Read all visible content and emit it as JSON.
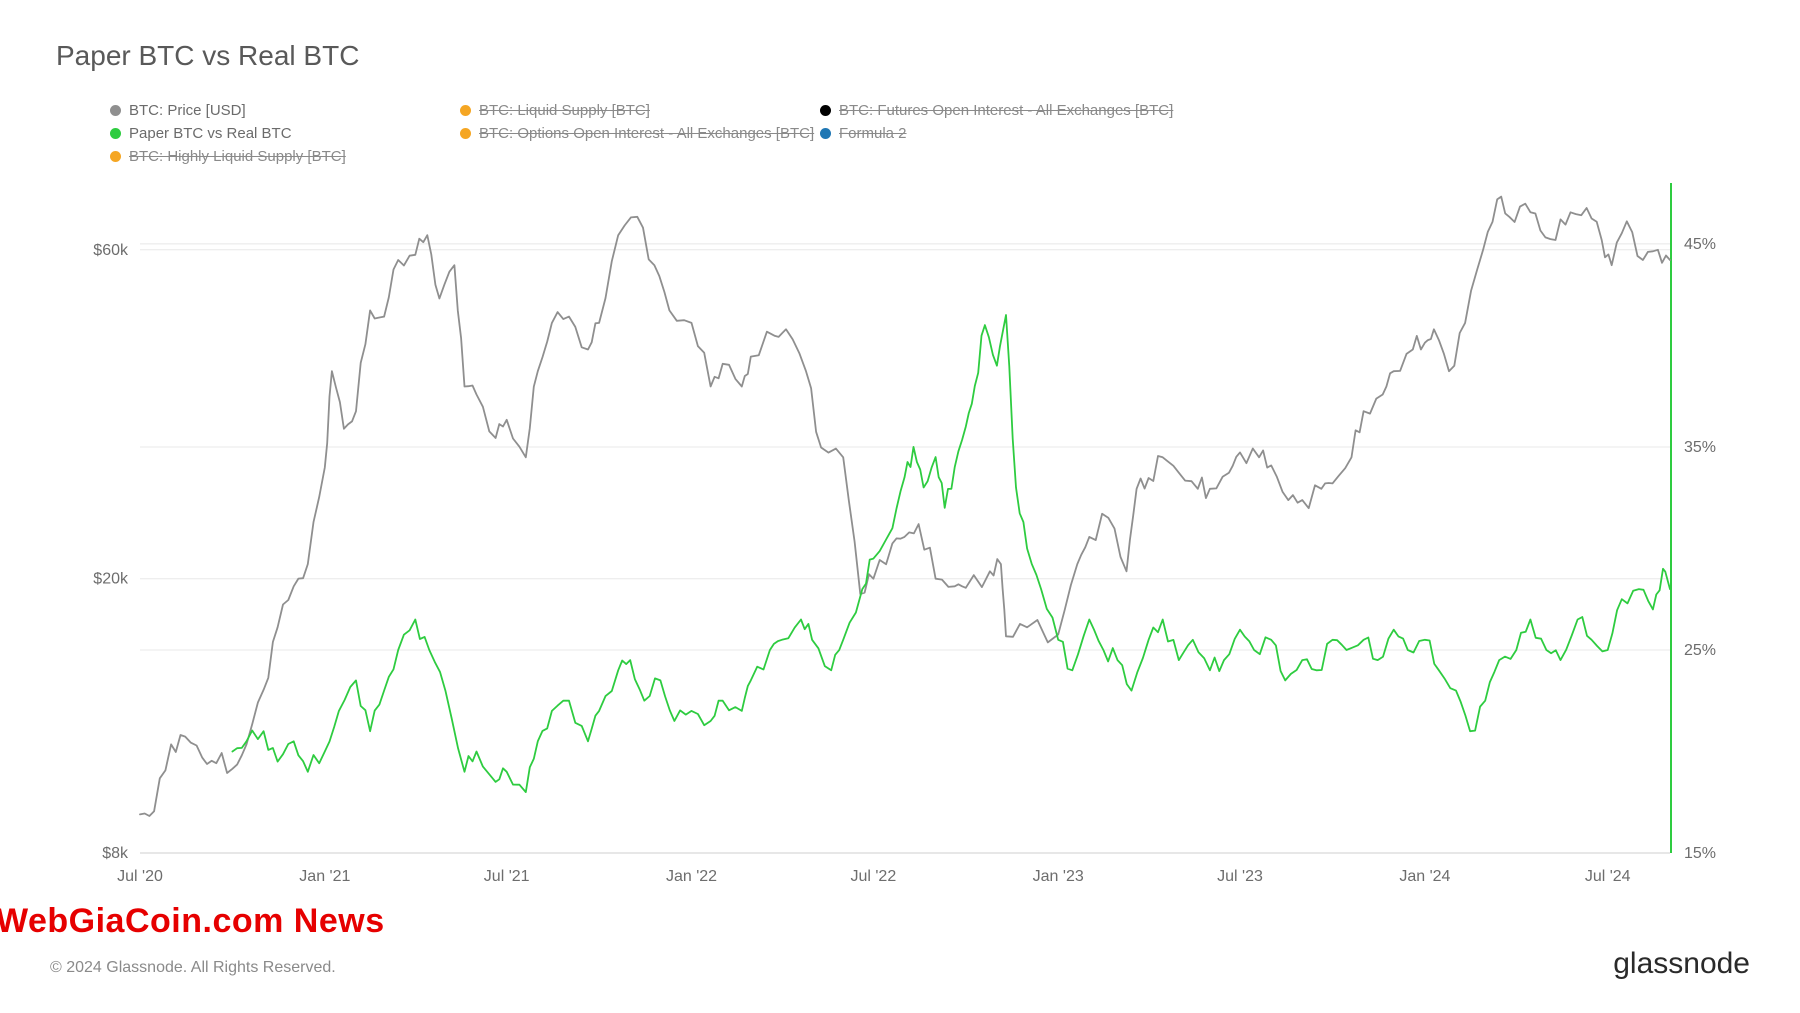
{
  "title": "Paper BTC vs Real BTC",
  "copyright": "© 2024 Glassnode. All Rights Reserved.",
  "brand": "glassnode",
  "watermark": "WebGiaCoin.com News",
  "legend": [
    {
      "label": "BTC: Price [USD]",
      "color": "#8f8f8f",
      "strike": false
    },
    {
      "label": "BTC: Liquid Supply [BTC]",
      "color": "#f5a623",
      "strike": true
    },
    {
      "label": "BTC: Futures Open Interest - All Exchanges [BTC]",
      "color": "#000000",
      "strike": true
    },
    {
      "label": "Paper BTC vs Real BTC",
      "color": "#2ecc40",
      "strike": false
    },
    {
      "label": "BTC: Options Open Interest - All Exchanges [BTC]",
      "color": "#f5a623",
      "strike": true
    },
    {
      "label": "Formula 2",
      "color": "#1f77b4",
      "strike": true
    },
    {
      "label": "BTC: Highly Liquid Supply [BTC]",
      "color": "#f5a623",
      "strike": true
    }
  ],
  "chart": {
    "background_color": "#ffffff",
    "grid_color": "#e8e8e8",
    "border_color": "#cfcfcf",
    "x": {
      "domain_dates": [
        "2020-07-01",
        "2024-09-01"
      ],
      "ticks": [
        {
          "t": "2020-07-01",
          "label": "Jul '20"
        },
        {
          "t": "2021-01-01",
          "label": "Jan '21"
        },
        {
          "t": "2021-07-01",
          "label": "Jul '21"
        },
        {
          "t": "2022-01-01",
          "label": "Jan '22"
        },
        {
          "t": "2022-07-01",
          "label": "Jul '22"
        },
        {
          "t": "2023-01-01",
          "label": "Jan '23"
        },
        {
          "t": "2023-07-01",
          "label": "Jul '23"
        },
        {
          "t": "2024-01-01",
          "label": "Jan '24"
        },
        {
          "t": "2024-07-01",
          "label": "Jul '24"
        }
      ]
    },
    "y_left": {
      "scale": "log",
      "domain": [
        8000,
        75000
      ],
      "ticks": [
        {
          "v": 8000,
          "label": "$8k"
        },
        {
          "v": 20000,
          "label": "$20k"
        },
        {
          "v": 60000,
          "label": "$60k"
        }
      ],
      "label_fontsize": 16
    },
    "y_right": {
      "scale": "linear",
      "domain": [
        15,
        48
      ],
      "ticks": [
        {
          "v": 15,
          "label": "15%"
        },
        {
          "v": 25,
          "label": "25%"
        },
        {
          "v": 35,
          "label": "35%"
        },
        {
          "v": 45,
          "label": "45%"
        }
      ],
      "label_fontsize": 16,
      "axis_highlight_color": "#2ecc40"
    },
    "series": [
      {
        "name": "price",
        "axis": "left",
        "color": "#8f8f8f",
        "line_width": 1.8,
        "points": [
          [
            "2020-07-01",
            9100
          ],
          [
            "2020-07-15",
            9200
          ],
          [
            "2020-08-01",
            11500
          ],
          [
            "2020-08-15",
            11800
          ],
          [
            "2020-09-01",
            11000
          ],
          [
            "2020-09-15",
            10800
          ],
          [
            "2020-10-01",
            10600
          ],
          [
            "2020-10-15",
            11500
          ],
          [
            "2020-11-01",
            13800
          ],
          [
            "2020-11-15",
            17000
          ],
          [
            "2020-12-01",
            19500
          ],
          [
            "2020-12-15",
            21000
          ],
          [
            "2021-01-01",
            29000
          ],
          [
            "2021-01-08",
            40000
          ],
          [
            "2021-01-20",
            33000
          ],
          [
            "2021-02-01",
            35000
          ],
          [
            "2021-02-15",
            49000
          ],
          [
            "2021-03-01",
            48000
          ],
          [
            "2021-03-15",
            58000
          ],
          [
            "2021-04-01",
            59000
          ],
          [
            "2021-04-13",
            63000
          ],
          [
            "2021-04-25",
            51000
          ],
          [
            "2021-05-10",
            57000
          ],
          [
            "2021-05-20",
            38000
          ],
          [
            "2021-06-01",
            37000
          ],
          [
            "2021-06-20",
            32000
          ],
          [
            "2021-07-01",
            34000
          ],
          [
            "2021-07-20",
            30000
          ],
          [
            "2021-08-01",
            40000
          ],
          [
            "2021-08-15",
            47000
          ],
          [
            "2021-09-01",
            48000
          ],
          [
            "2021-09-20",
            43000
          ],
          [
            "2021-10-01",
            47000
          ],
          [
            "2021-10-20",
            63000
          ],
          [
            "2021-11-08",
            67000
          ],
          [
            "2021-11-25",
            57000
          ],
          [
            "2021-12-10",
            49000
          ],
          [
            "2022-01-01",
            47000
          ],
          [
            "2022-01-20",
            38000
          ],
          [
            "2022-02-01",
            41000
          ],
          [
            "2022-02-20",
            38000
          ],
          [
            "2022-03-01",
            42000
          ],
          [
            "2022-03-25",
            45000
          ],
          [
            "2022-04-05",
            46000
          ],
          [
            "2022-04-25",
            40000
          ],
          [
            "2022-05-10",
            31000
          ],
          [
            "2022-06-01",
            30000
          ],
          [
            "2022-06-18",
            19000
          ],
          [
            "2022-07-01",
            20000
          ],
          [
            "2022-07-20",
            22500
          ],
          [
            "2022-08-01",
            23000
          ],
          [
            "2022-08-15",
            24000
          ],
          [
            "2022-09-01",
            20000
          ],
          [
            "2022-09-20",
            19500
          ],
          [
            "2022-10-01",
            19400
          ],
          [
            "2022-10-25",
            20500
          ],
          [
            "2022-11-05",
            21000
          ],
          [
            "2022-11-10",
            16500
          ],
          [
            "2022-12-01",
            17000
          ],
          [
            "2023-01-01",
            16600
          ],
          [
            "2023-01-20",
            21000
          ],
          [
            "2023-02-01",
            23000
          ],
          [
            "2023-02-20",
            24500
          ],
          [
            "2023-03-10",
            20500
          ],
          [
            "2023-03-20",
            27000
          ],
          [
            "2023-04-01",
            28000
          ],
          [
            "2023-04-15",
            30000
          ],
          [
            "2023-05-01",
            28500
          ],
          [
            "2023-05-20",
            27000
          ],
          [
            "2023-06-01",
            27000
          ],
          [
            "2023-06-20",
            28500
          ],
          [
            "2023-07-01",
            30500
          ],
          [
            "2023-07-20",
            30000
          ],
          [
            "2023-08-01",
            29200
          ],
          [
            "2023-08-18",
            26000
          ],
          [
            "2023-09-01",
            26000
          ],
          [
            "2023-09-20",
            27000
          ],
          [
            "2023-10-01",
            27500
          ],
          [
            "2023-10-20",
            30000
          ],
          [
            "2023-11-01",
            35000
          ],
          [
            "2023-11-20",
            37000
          ],
          [
            "2023-12-01",
            40000
          ],
          [
            "2023-12-20",
            43000
          ],
          [
            "2024-01-01",
            44000
          ],
          [
            "2024-01-10",
            46000
          ],
          [
            "2024-01-25",
            40000
          ],
          [
            "2024-02-10",
            47000
          ],
          [
            "2024-02-28",
            60000
          ],
          [
            "2024-03-13",
            71000
          ],
          [
            "2024-03-25",
            67000
          ],
          [
            "2024-04-10",
            70000
          ],
          [
            "2024-04-25",
            64000
          ],
          [
            "2024-05-10",
            62000
          ],
          [
            "2024-05-25",
            68000
          ],
          [
            "2024-06-10",
            69000
          ],
          [
            "2024-06-25",
            62000
          ],
          [
            "2024-07-05",
            57000
          ],
          [
            "2024-07-20",
            66000
          ],
          [
            "2024-08-05",
            58000
          ],
          [
            "2024-08-20",
            60000
          ],
          [
            "2024-09-01",
            58000
          ]
        ]
      },
      {
        "name": "ratio",
        "axis": "right",
        "color": "#2ecc40",
        "line_width": 1.8,
        "points": [
          [
            "2020-10-01",
            20.0
          ],
          [
            "2020-10-15",
            20.5
          ],
          [
            "2020-11-01",
            21.0
          ],
          [
            "2020-11-15",
            19.5
          ],
          [
            "2020-12-01",
            20.5
          ],
          [
            "2020-12-15",
            19.0
          ],
          [
            "2021-01-01",
            20.0
          ],
          [
            "2021-01-15",
            22.0
          ],
          [
            "2021-02-01",
            23.5
          ],
          [
            "2021-02-15",
            21.0
          ],
          [
            "2021-03-01",
            23.0
          ],
          [
            "2021-03-15",
            25.0
          ],
          [
            "2021-04-01",
            26.5
          ],
          [
            "2021-04-15",
            25.0
          ],
          [
            "2021-05-01",
            23.0
          ],
          [
            "2021-05-20",
            19.0
          ],
          [
            "2021-06-01",
            20.0
          ],
          [
            "2021-06-20",
            18.5
          ],
          [
            "2021-07-01",
            19.0
          ],
          [
            "2021-07-20",
            18.0
          ],
          [
            "2021-08-01",
            20.5
          ],
          [
            "2021-08-15",
            22.0
          ],
          [
            "2021-09-01",
            22.5
          ],
          [
            "2021-09-20",
            20.5
          ],
          [
            "2021-10-01",
            22.0
          ],
          [
            "2021-10-20",
            24.0
          ],
          [
            "2021-11-01",
            24.5
          ],
          [
            "2021-11-15",
            22.5
          ],
          [
            "2021-12-01",
            23.5
          ],
          [
            "2021-12-15",
            21.5
          ],
          [
            "2022-01-01",
            22.0
          ],
          [
            "2022-01-20",
            21.5
          ],
          [
            "2022-02-01",
            22.5
          ],
          [
            "2022-02-20",
            22.0
          ],
          [
            "2022-03-01",
            23.5
          ],
          [
            "2022-03-20",
            25.0
          ],
          [
            "2022-04-01",
            25.5
          ],
          [
            "2022-04-20",
            26.5
          ],
          [
            "2022-05-01",
            25.5
          ],
          [
            "2022-05-20",
            24.0
          ],
          [
            "2022-06-01",
            25.5
          ],
          [
            "2022-06-20",
            28.0
          ],
          [
            "2022-07-01",
            29.5
          ],
          [
            "2022-07-20",
            31.0
          ],
          [
            "2022-08-01",
            33.5
          ],
          [
            "2022-08-10",
            35.0
          ],
          [
            "2022-08-20",
            33.0
          ],
          [
            "2022-09-01",
            34.5
          ],
          [
            "2022-09-10",
            32.0
          ],
          [
            "2022-09-20",
            34.0
          ],
          [
            "2022-10-01",
            36.0
          ],
          [
            "2022-10-10",
            38.0
          ],
          [
            "2022-10-20",
            41.0
          ],
          [
            "2022-11-01",
            39.0
          ],
          [
            "2022-11-10",
            41.5
          ],
          [
            "2022-11-20",
            33.0
          ],
          [
            "2022-12-01",
            30.0
          ],
          [
            "2022-12-15",
            28.0
          ],
          [
            "2023-01-01",
            25.5
          ],
          [
            "2023-01-15",
            24.0
          ],
          [
            "2023-02-01",
            26.5
          ],
          [
            "2023-02-15",
            25.0
          ],
          [
            "2023-03-01",
            24.5
          ],
          [
            "2023-03-15",
            23.0
          ],
          [
            "2023-04-01",
            25.5
          ],
          [
            "2023-04-15",
            26.5
          ],
          [
            "2023-05-01",
            24.5
          ],
          [
            "2023-05-15",
            25.5
          ],
          [
            "2023-06-01",
            24.0
          ],
          [
            "2023-06-15",
            24.5
          ],
          [
            "2023-07-01",
            26.0
          ],
          [
            "2023-07-15",
            25.0
          ],
          [
            "2023-08-01",
            25.5
          ],
          [
            "2023-08-15",
            23.5
          ],
          [
            "2023-09-01",
            24.5
          ],
          [
            "2023-09-15",
            24.0
          ],
          [
            "2023-10-01",
            25.5
          ],
          [
            "2023-10-15",
            25.0
          ],
          [
            "2023-11-01",
            25.5
          ],
          [
            "2023-11-15",
            24.5
          ],
          [
            "2023-12-01",
            26.0
          ],
          [
            "2023-12-15",
            25.0
          ],
          [
            "2024-01-01",
            25.5
          ],
          [
            "2024-01-15",
            24.0
          ],
          [
            "2024-02-01",
            23.0
          ],
          [
            "2024-02-15",
            21.0
          ],
          [
            "2024-03-01",
            22.5
          ],
          [
            "2024-03-15",
            24.5
          ],
          [
            "2024-04-01",
            25.0
          ],
          [
            "2024-04-15",
            26.5
          ],
          [
            "2024-05-01",
            25.0
          ],
          [
            "2024-05-15",
            24.5
          ],
          [
            "2024-06-01",
            26.5
          ],
          [
            "2024-06-15",
            25.5
          ],
          [
            "2024-07-01",
            25.0
          ],
          [
            "2024-07-15",
            27.5
          ],
          [
            "2024-08-01",
            28.0
          ],
          [
            "2024-08-15",
            27.0
          ],
          [
            "2024-08-25",
            29.0
          ],
          [
            "2024-09-01",
            28.0
          ]
        ]
      }
    ]
  }
}
